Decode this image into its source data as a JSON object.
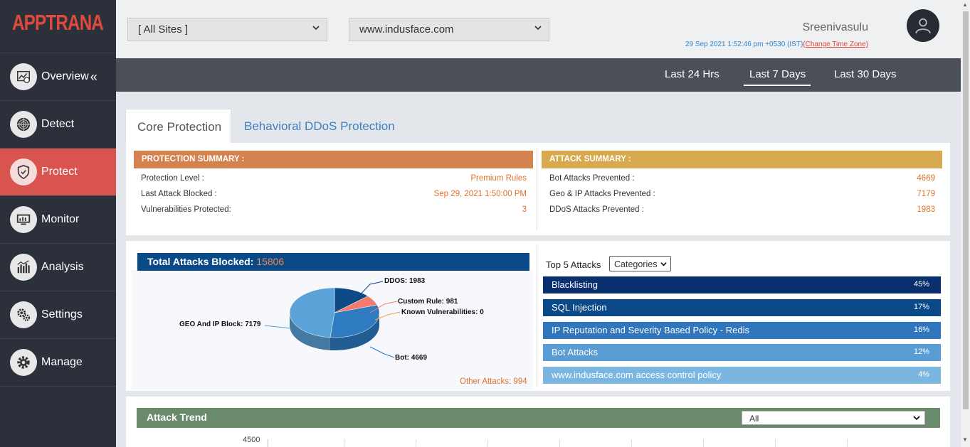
{
  "logo": "APPTRANA",
  "sidebar": {
    "items": [
      {
        "label": "Overview",
        "icon": "overview-chart-icon"
      },
      {
        "label": "Detect",
        "icon": "radar-icon"
      },
      {
        "label": "Protect",
        "icon": "shield-icon"
      },
      {
        "label": "Monitor",
        "icon": "monitor-icon"
      },
      {
        "label": "Analysis",
        "icon": "bar-chart-icon"
      },
      {
        "label": "Settings",
        "icon": "gears-icon"
      },
      {
        "label": "Manage",
        "icon": "gear-icon"
      }
    ],
    "collapse": "«",
    "active": "Protect"
  },
  "header": {
    "site_select": "[ All Sites ]",
    "domain_select": "www.indusface.com",
    "user_name": "Sreenivasulu",
    "timestamp": "29 Sep 2021 1:52:46 pm +0530 (IST)",
    "change_tz": "(Change Time Zone)"
  },
  "time_tabs": [
    "Last 24 Hrs",
    "Last 7 Days",
    "Last 30 Days"
  ],
  "active_time_tab": "Last 7 Days",
  "content_tabs": [
    "Core Protection",
    "Behavioral DDoS Protection"
  ],
  "protection_summary": {
    "title": "PROTECTION SUMMARY :",
    "rows": [
      {
        "label": "Protection Level :",
        "value": "Premium Rules"
      },
      {
        "label": "Last Attack Blocked :",
        "value": "Sep 29, 2021 1:50:00 PM"
      },
      {
        "label": "Vulnerabilities Protected:",
        "value": "3"
      }
    ],
    "color": "#d4824e"
  },
  "attack_summary": {
    "title": "ATTACK SUMMARY :",
    "rows": [
      {
        "label": "Bot Attacks Prevented :",
        "value": "4669"
      },
      {
        "label": "Geo & IP Attacks Prevented :",
        "value": "7179"
      },
      {
        "label": "DDoS Attacks Prevented :",
        "value": "1983"
      }
    ],
    "color": "#d9a94f"
  },
  "total_attacks": {
    "label": "Total Attacks Blocked:",
    "value": "15806",
    "other_attacks": "Other Attacks: 994"
  },
  "chart_data": {
    "type": "pie",
    "labels": [
      "DDOS",
      "Custom Rule",
      "Known Vulnerabilities",
      "Bot",
      "GEO And IP Block"
    ],
    "values": [
      1983,
      981,
      0,
      4669,
      7179
    ],
    "label_texts": [
      "DDOS: 1983",
      "Custom Rule: 981",
      "Known Vulnerabilities: 0",
      "Bot: 4669",
      "GEO And IP Block: 7179"
    ],
    "colors": [
      "#0d4a86",
      "#f47a6e",
      "#f4a340",
      "#2e7bc1",
      "#5aa2d8"
    ]
  },
  "top5": {
    "label": "Top 5 Attacks",
    "select": "Categories",
    "items": [
      {
        "name": "Blacklisting",
        "pct": "45%",
        "color": "#0a2f6e"
      },
      {
        "name": "SQL Injection",
        "pct": "17%",
        "color": "#0b4a88"
      },
      {
        "name": "IP Reputation and Severity Based Policy - Redis",
        "pct": "16%",
        "color": "#2f76bd"
      },
      {
        "name": "Bot Attacks",
        "pct": "12%",
        "color": "#5a9dd4"
      },
      {
        "name": "www.indusface.com access control policy",
        "pct": "4%",
        "color": "#7ab6e0"
      }
    ]
  },
  "attack_trend": {
    "title": "Attack Trend",
    "select": "All",
    "y_tick": "4500"
  }
}
